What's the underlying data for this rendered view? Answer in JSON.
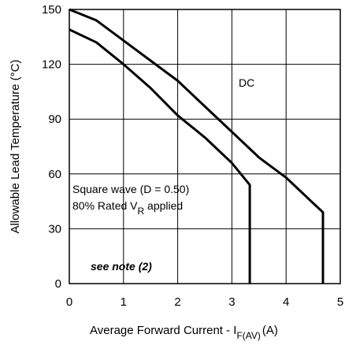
{
  "chart_data": {
    "type": "line",
    "title": "",
    "xlabel": "Average Forward Current - I",
    "xlabel_sub": "F(AV)",
    "xlabel_unit": "(A)",
    "ylabel": "Allowable Lead Temperature (°C)",
    "xlim": [
      0,
      5
    ],
    "ylim": [
      0,
      150
    ],
    "xticks": [
      "0",
      "1",
      "2",
      "3",
      "4",
      "5"
    ],
    "yticks": [
      "0",
      "30",
      "60",
      "90",
      "120",
      "150"
    ],
    "grid": true,
    "series": [
      {
        "name": "DC",
        "points": [
          [
            0,
            150
          ],
          [
            0.5,
            144
          ],
          [
            1,
            133
          ],
          [
            1.5,
            122
          ],
          [
            2,
            111
          ],
          [
            2.5,
            97
          ],
          [
            3,
            83
          ],
          [
            3.5,
            69
          ],
          [
            4,
            58
          ],
          [
            4.5,
            44
          ],
          [
            4.68,
            39
          ],
          [
            4.68,
            0
          ]
        ]
      },
      {
        "name": "Square wave (D = 0.50)",
        "points": [
          [
            0,
            139
          ],
          [
            0.5,
            132
          ],
          [
            1,
            120
          ],
          [
            1.5,
            107
          ],
          [
            2,
            92
          ],
          [
            2.5,
            80
          ],
          [
            3,
            66
          ],
          [
            3.33,
            54
          ],
          [
            3.33,
            0
          ]
        ]
      }
    ],
    "annotations": {
      "dc": "DC",
      "square_line1": "Square wave (D = 0.50)",
      "square_line2_pre": "80% Rated V",
      "square_line2_sub": "R",
      "square_line2_post": " applied",
      "note": "see note (2)"
    }
  }
}
